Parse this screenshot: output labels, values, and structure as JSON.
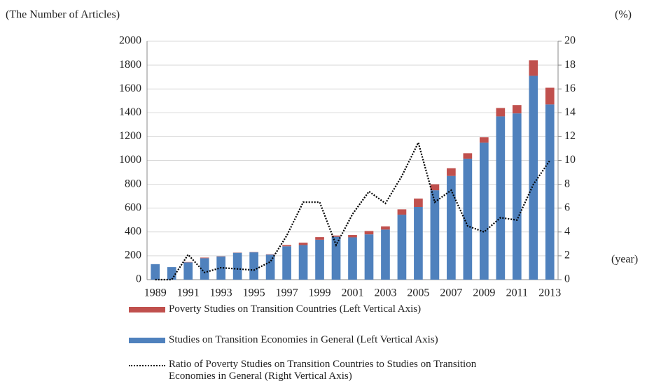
{
  "chart_data": {
    "type": "bar",
    "stacked": true,
    "y_label": "(The Number of Articles)",
    "y2_label": "(%)",
    "x_label": "(year)",
    "categories": [
      "1989",
      null,
      "1991",
      null,
      "1993",
      null,
      "1995",
      null,
      "1997",
      null,
      "1999",
      null,
      "2001",
      null,
      "2003",
      null,
      "2005",
      null,
      "2007",
      null,
      "2009",
      null,
      "2011",
      null,
      "2013"
    ],
    "series": [
      {
        "name": "Studies on Transition Economies in General (Left Vertical Axis)",
        "color": "#4f81bd",
        "type": "bar",
        "values": [
          130,
          105,
          145,
          180,
          195,
          225,
          230,
          210,
          280,
          290,
          335,
          360,
          355,
          380,
          420,
          545,
          610,
          750,
          870,
          1015,
          1150,
          1370,
          1395,
          1710,
          1470
        ]
      },
      {
        "name": "Poverty Studies on Transition Countries (Left Vertical Axis)",
        "color": "#c0504d",
        "type": "bar",
        "values": [
          0,
          0,
          3,
          5,
          2,
          2,
          2,
          3,
          10,
          20,
          22,
          10,
          20,
          28,
          27,
          45,
          70,
          50,
          65,
          45,
          45,
          70,
          70,
          130,
          140
        ]
      },
      {
        "name": "Ratio of Poverty Studies on Transition Countries to Studies on Transition Economies in General (Right Vertical Axis)",
        "color": "#000000",
        "type": "line",
        "axis": "y2",
        "values": [
          0,
          0,
          2.1,
          0.6,
          1.0,
          0.9,
          0.8,
          1.5,
          3.7,
          6.5,
          6.5,
          2.9,
          5.5,
          7.4,
          6.4,
          8.7,
          11.5,
          6.5,
          7.5,
          4.5,
          4.0,
          5.2,
          5.0,
          8.0,
          10.0
        ]
      }
    ],
    "ylim": [
      0,
      2000
    ],
    "yticks": [
      0,
      200,
      400,
      600,
      800,
      1000,
      1200,
      1400,
      1600,
      1800,
      2000
    ],
    "y2lim": [
      0,
      20
    ],
    "y2ticks": [
      0,
      2,
      4,
      6,
      8,
      10,
      12,
      14,
      16,
      18,
      20
    ],
    "grid": true
  }
}
